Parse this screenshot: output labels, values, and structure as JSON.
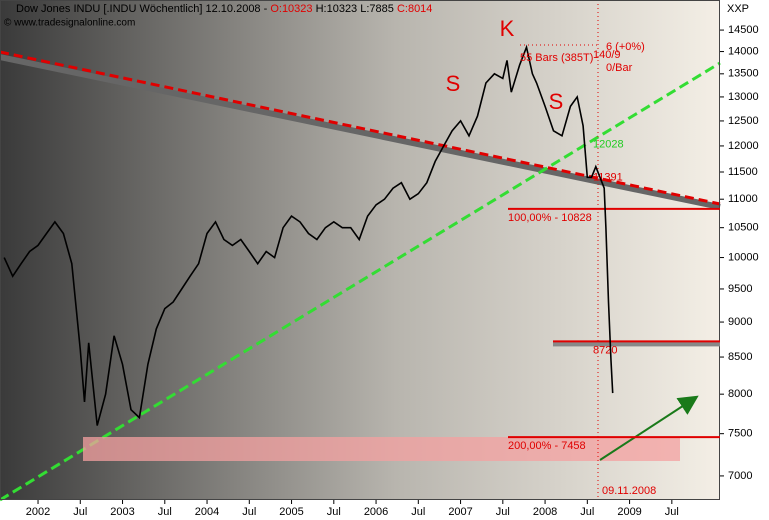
{
  "chart_data": {
    "type": "line",
    "title_parts": [
      "Dow Jones INDU [.INDU  Wöchentlich] 12.10.2008 - ",
      "O:10323",
      " H:10323",
      " L:7885",
      " C:8014"
    ],
    "title_colors": [
      "#000000",
      "#e00000",
      "#000000",
      "#000000",
      "#e00000"
    ],
    "source": "© www.tradesignalonline.com",
    "y_unit_label": "XXP",
    "log_scale": true,
    "xlim": [
      2001.55,
      2010.07
    ],
    "xticks": [
      {
        "value": 2002,
        "label": "2002"
      },
      {
        "value": 2002.5,
        "label": "Jul"
      },
      {
        "value": 2003,
        "label": "2003"
      },
      {
        "value": 2003.5,
        "label": "Jul"
      },
      {
        "value": 2004,
        "label": "2004"
      },
      {
        "value": 2004.5,
        "label": "Jul"
      },
      {
        "value": 2005,
        "label": "2005"
      },
      {
        "value": 2005.5,
        "label": "Jul"
      },
      {
        "value": 2006,
        "label": "2006"
      },
      {
        "value": 2006.5,
        "label": "Jul"
      },
      {
        "value": 2007,
        "label": "2007"
      },
      {
        "value": 2007.5,
        "label": "Jul"
      },
      {
        "value": 2008,
        "label": "2008"
      },
      {
        "value": 2008.5,
        "label": "Jul"
      },
      {
        "value": 2009,
        "label": "2009"
      },
      {
        "value": 2009.5,
        "label": "Jul"
      }
    ],
    "ylim": [
      6730,
      15230
    ],
    "yticks": [
      7000,
      7500,
      8000,
      8500,
      9000,
      9500,
      10000,
      10500,
      11000,
      11500,
      12000,
      12500,
      13000,
      13500,
      14000,
      14500
    ],
    "series": [
      {
        "name": "Dow Jones INDU",
        "color": "#000000",
        "x": [
          2001.6,
          2001.7,
          2001.8,
          2001.9,
          2002.0,
          2002.1,
          2002.2,
          2002.3,
          2002.4,
          2002.5,
          2002.55,
          2002.6,
          2002.7,
          2002.8,
          2002.9,
          2003.0,
          2003.1,
          2003.2,
          2003.3,
          2003.4,
          2003.5,
          2003.6,
          2003.7,
          2003.8,
          2003.9,
          2004.0,
          2004.1,
          2004.2,
          2004.3,
          2004.4,
          2004.5,
          2004.6,
          2004.7,
          2004.8,
          2004.9,
          2005.0,
          2005.1,
          2005.2,
          2005.3,
          2005.4,
          2005.5,
          2005.6,
          2005.7,
          2005.8,
          2005.9,
          2006.0,
          2006.1,
          2006.2,
          2006.3,
          2006.4,
          2006.5,
          2006.6,
          2006.7,
          2006.8,
          2006.9,
          2007.0,
          2007.1,
          2007.2,
          2007.3,
          2007.4,
          2007.5,
          2007.55,
          2007.6,
          2007.7,
          2007.78,
          2007.85,
          2007.9,
          2008.0,
          2008.1,
          2008.2,
          2008.3,
          2008.38,
          2008.45,
          2008.5,
          2008.55,
          2008.6,
          2008.65,
          2008.7,
          2008.72,
          2008.75,
          2008.78,
          2008.8
        ],
        "values": [
          10000,
          9700,
          9900,
          10100,
          10200,
          10400,
          10600,
          10400,
          9900,
          8600,
          7900,
          8700,
          7600,
          8000,
          8800,
          8400,
          7800,
          7700,
          8400,
          8900,
          9200,
          9300,
          9500,
          9700,
          9900,
          10400,
          10600,
          10300,
          10200,
          10300,
          10100,
          9900,
          10100,
          10000,
          10500,
          10700,
          10600,
          10400,
          10300,
          10500,
          10600,
          10500,
          10500,
          10300,
          10700,
          10900,
          11000,
          11200,
          11300,
          11000,
          11100,
          11300,
          11700,
          12000,
          12300,
          12500,
          12200,
          12600,
          13300,
          13500,
          13400,
          13800,
          13100,
          13700,
          14100,
          13500,
          13300,
          12800,
          12300,
          12200,
          12800,
          13000,
          12400,
          11400,
          11400,
          11600,
          11400,
          11200,
          10500,
          9300,
          8450,
          8014
        ]
      }
    ],
    "levels": [
      {
        "value": 10828,
        "label": "100,00% - 10828",
        "color": "#e00000"
      },
      {
        "value": 7458,
        "label": "200,00% - 7458",
        "color": "#e00000"
      },
      {
        "value": 8720,
        "label": "8720",
        "color": "#e00000"
      }
    ],
    "trend_labels": [
      {
        "value": 11391,
        "label": "11391",
        "color": "#e00000"
      },
      {
        "value": 12028,
        "label": "12028",
        "color": "#22cc22"
      }
    ],
    "pattern_labels": [
      "S",
      "K",
      "S"
    ],
    "annotations": [
      "55 Bars (385T)",
      "6 (+0%)",
      "140/9",
      "0/Bar",
      "09.11.2008"
    ]
  }
}
